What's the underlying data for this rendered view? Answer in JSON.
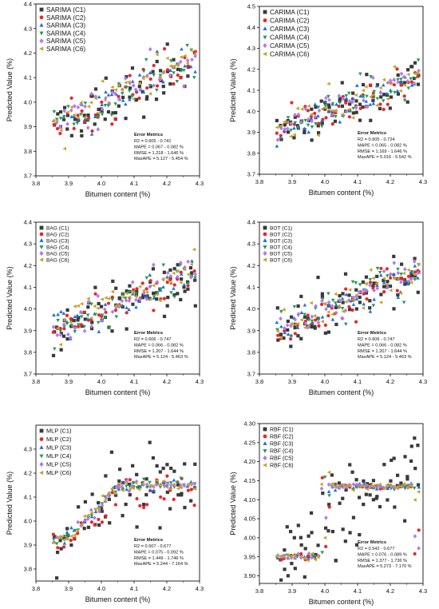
{
  "figure": {
    "colors": {
      "C1": "#3a3a3a",
      "C2": "#e8262b",
      "C3": "#1f6fd6",
      "C4": "#1f9d55",
      "C5": "#b47ae6",
      "C6": "#c9a227"
    },
    "marker_shapes": {
      "C1": "square",
      "C2": "circle",
      "C3": "triangle-up",
      "C4": "triangle-down",
      "C5": "diamond",
      "C6": "triangle-left"
    }
  },
  "chart_data": [
    {
      "type": "scatter",
      "xlabel": "Bitumen content (%)",
      "ylabel": "Predicted Value (%)",
      "xlim": [
        3.8,
        4.3
      ],
      "ylim": [
        3.7,
        4.4
      ],
      "xticks": [
        "3.8",
        "3.9",
        "4.0",
        "4.1",
        "4.2",
        "4.3"
      ],
      "yticks": [
        "3.7",
        "3.8",
        "3.9",
        "4.0",
        "4.1",
        "4.2",
        "4.3",
        "4.4"
      ],
      "legend": [
        "SARIMA (C1)",
        "SARIMA (C2)",
        "SARIMA (C3)",
        "SARIMA (C4)",
        "SARIMA (C5)",
        "SARIMA (C6)"
      ],
      "legend_position": "top-left",
      "pattern": "linear",
      "metrics": {
        "title": "Error Metrics",
        "lines": [
          "R2 = 0.605 - 0.741",
          "MAPE = 0.067 - 0.082 %",
          "RMSE = 1.218 - 1.646 %",
          "MaxAPE = 5.127 - 5.454 %"
        ]
      }
    },
    {
      "type": "scatter",
      "xlabel": "Bitumen content (%)",
      "ylabel": "Predicted Value (%)",
      "xlim": [
        3.8,
        4.3
      ],
      "ylim": [
        3.7,
        4.5
      ],
      "xticks": [
        "3.8",
        "3.9",
        "4.0",
        "4.1",
        "4.2",
        "4.3"
      ],
      "yticks": [
        "3.7",
        "3.8",
        "3.9",
        "4.0",
        "4.1",
        "4.2",
        "4.3",
        "4.4",
        "4.5"
      ],
      "legend": [
        "CARIMA (C1)",
        "CARIMA (C2)",
        "CARIMA (C3)",
        "CARIMA (C4)",
        "CARIMA (C5)",
        "CARIMA (C6)"
      ],
      "legend_position": "top-left",
      "pattern": "linear",
      "metrics": {
        "title": "Error Metrics",
        "lines": [
          "R2 = 0.605 - 0.724",
          "MAPE = 0.065 - 0.082 %",
          "RMSE = 1.169 - 1.646 %",
          "MaxAPE = 5.016 - 5.542 %"
        ]
      }
    },
    {
      "type": "scatter",
      "xlabel": "Bitumen content (%)",
      "ylabel": "Predicted Value (%)",
      "xlim": [
        3.8,
        4.3
      ],
      "ylim": [
        3.7,
        4.4
      ],
      "xticks": [
        "3.8",
        "3.9",
        "4.0",
        "4.1",
        "4.2",
        "4.3"
      ],
      "yticks": [
        "3.7",
        "3.8",
        "3.9",
        "4.0",
        "4.1",
        "4.2",
        "4.3",
        "4.4"
      ],
      "legend": [
        "BAG (C1)",
        "BAG (C2)",
        "BAG (C3)",
        "BAG (C4)",
        "BAG (C5)",
        "BAG (C6)"
      ],
      "legend_position": "top-left",
      "pattern": "linear",
      "metrics": {
        "title": "Error Metrics",
        "lines": [
          "R2 = 0.606 - 0.747",
          "MAPE = 0.066 - 0.082 %",
          "RMSE = 1.207 - 1.644 %",
          "MaxAPE = 5.124 - 5.463 %"
        ]
      }
    },
    {
      "type": "scatter",
      "xlabel": "Bitumen content (%)",
      "ylabel": "Predicted Value (%)",
      "xlim": [
        3.8,
        4.3
      ],
      "ylim": [
        3.7,
        4.4
      ],
      "xticks": [
        "3.8",
        "3.9",
        "4.0",
        "4.1",
        "4.2",
        "4.3"
      ],
      "yticks": [
        "3.7",
        "3.8",
        "3.9",
        "4.0",
        "4.1",
        "4.2",
        "4.3",
        "4.4"
      ],
      "legend": [
        "BOT (C1)",
        "BOT (C2)",
        "BOT (C3)",
        "BOT (C4)",
        "BOT (C5)",
        "BOT (C6)"
      ],
      "legend_position": "top-left",
      "pattern": "linear",
      "metrics": {
        "title": "Error Metrics",
        "lines": [
          "R2 = 0.606 - 0.747",
          "MAPE = 0.066 - 0.082 %",
          "RMSE = 1.207 - 1.644 %",
          "MaxAPE = 5.124 - 5.463 %"
        ]
      }
    },
    {
      "type": "scatter",
      "xlabel": "Bitumen content (%)",
      "ylabel": "Predicted Value (%)",
      "xlim": [
        3.8,
        4.3
      ],
      "ylim": [
        3.75,
        4.4
      ],
      "xticks": [
        "3.8",
        "3.9",
        "4.0",
        "4.1",
        "4.2",
        "4.3"
      ],
      "yticks": [
        "3.8",
        "3.9",
        "4.0",
        "4.1",
        "4.2",
        "4.3"
      ],
      "legend": [
        "MLP (C1)",
        "MLP (C2)",
        "MLP (C3)",
        "MLP (C4)",
        "MLP (C5)",
        "MLP (C6)"
      ],
      "legend_position": "top-left",
      "pattern": "plateau",
      "plateau_level": 4.15,
      "metrics": {
        "title": "Error Metrics",
        "lines": [
          "R2 = 0.507 - 0.677",
          "MAPE = 0.075 - 0.092 %",
          "RMSE = 1.449 - 1.746 %",
          "MaxAPE = 5.244 - 7.164 %"
        ]
      }
    },
    {
      "type": "scatter",
      "xlabel": "Bitumen content (%)",
      "ylabel": "Predicted Value (%)",
      "xlim": [
        3.8,
        4.3
      ],
      "ylim": [
        3.88,
        4.3
      ],
      "xticks": [
        "3.8",
        "3.9",
        "4.0",
        "4.1",
        "4.2",
        "4.3"
      ],
      "yticks": [
        "3.90",
        "3.95",
        "4.00",
        "4.05",
        "4.10",
        "4.15",
        "4.20",
        "4.25",
        "4.30"
      ],
      "legend": [
        "RBF (C1)",
        "RBF (C2)",
        "RBF (C3)",
        "RBF (C4)",
        "RBF (C5)",
        "RBF (C6)"
      ],
      "legend_position": "top-left",
      "pattern": "step",
      "plateau_level": 4.135,
      "low_level": 3.95,
      "metrics": {
        "title": "Error Metrics",
        "lines": [
          "R2 = 0.542 - 0.677",
          "MAPE = 0.076 - 0.089 %",
          "RMSE = 1.377 - 1.736 %",
          "MaxAPE = 5.273 - 7.170 %"
        ]
      }
    }
  ]
}
